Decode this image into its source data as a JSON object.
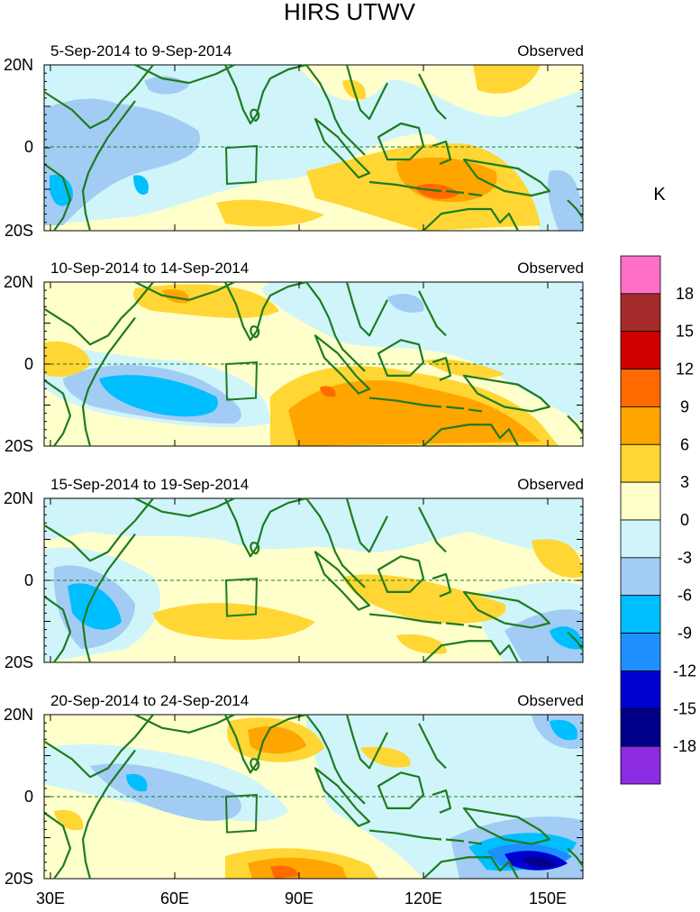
{
  "title": "HIRS UTWV",
  "panels": [
    {
      "date_range": "5-Sep-2014 to 9-Sep-2014",
      "label": "Observed"
    },
    {
      "date_range": "10-Sep-2014 to 14-Sep-2014",
      "label": "Observed"
    },
    {
      "date_range": "15-Sep-2014 to 19-Sep-2014",
      "label": "Observed"
    },
    {
      "date_range": "20-Sep-2014 to 24-Sep-2014",
      "label": "Observed"
    }
  ],
  "lat_labels": [
    "20N",
    "0",
    "20S"
  ],
  "lon_labels": [
    "30E",
    "60E",
    "90E",
    "120E",
    "150E"
  ],
  "colorbar": {
    "unit": "K",
    "levels": [
      "18",
      "15",
      "12",
      "9",
      "6",
      "3",
      "0",
      "-3",
      "-6",
      "-9",
      "-12",
      "-15",
      "-18"
    ],
    "colors": [
      "#ff6ec7",
      "#a52a2a",
      "#d00000",
      "#ff6a00",
      "#ffa500",
      "#ffd633",
      "#ffffcc",
      "#cff5fa",
      "#a3ccf5",
      "#00bfff",
      "#1e8fff",
      "#0000d0",
      "#00008b",
      "#8b2be2"
    ]
  },
  "map_colors": {
    "coast": "#1e7b1e",
    "equator": "#1e7b1e"
  }
}
